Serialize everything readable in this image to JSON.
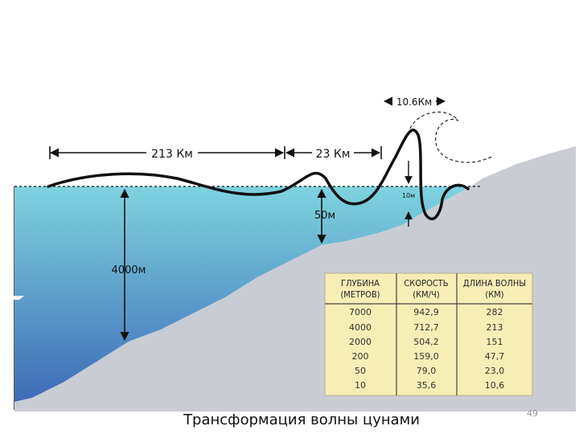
{
  "diagram": {
    "labels": {
      "distance_long": "213 Км",
      "distance_mid": "23 Км",
      "distance_short": "10.6Км",
      "depth_ocean": "4000м",
      "depth_shelf": "50м",
      "height_small": "10м"
    },
    "colors": {
      "water_top": "#7ed3df",
      "water_bottom": "#3e6bb6",
      "seabed": "#c9ccd3",
      "table_bg": "#f7eeb6",
      "wave": "#111111"
    }
  },
  "table": {
    "columns": [
      [
        "ГЛУБИНА",
        "(МЕТРОВ)"
      ],
      [
        "СКОРОСТЬ",
        "(КМ/Ч)"
      ],
      [
        "ДЛИНА ВОЛНЫ",
        "(КМ)"
      ]
    ],
    "rows": [
      [
        "7000",
        "942,9",
        "282"
      ],
      [
        "4000",
        "712,7",
        "213"
      ],
      [
        "2000",
        "504,2",
        "151"
      ],
      [
        "200",
        "159,0",
        "47,7"
      ],
      [
        "50",
        "79,0",
        "23,0"
      ],
      [
        "10",
        "35,6",
        "10,6"
      ]
    ]
  },
  "caption": "Трансформация волны цунами",
  "slide_number": "49"
}
